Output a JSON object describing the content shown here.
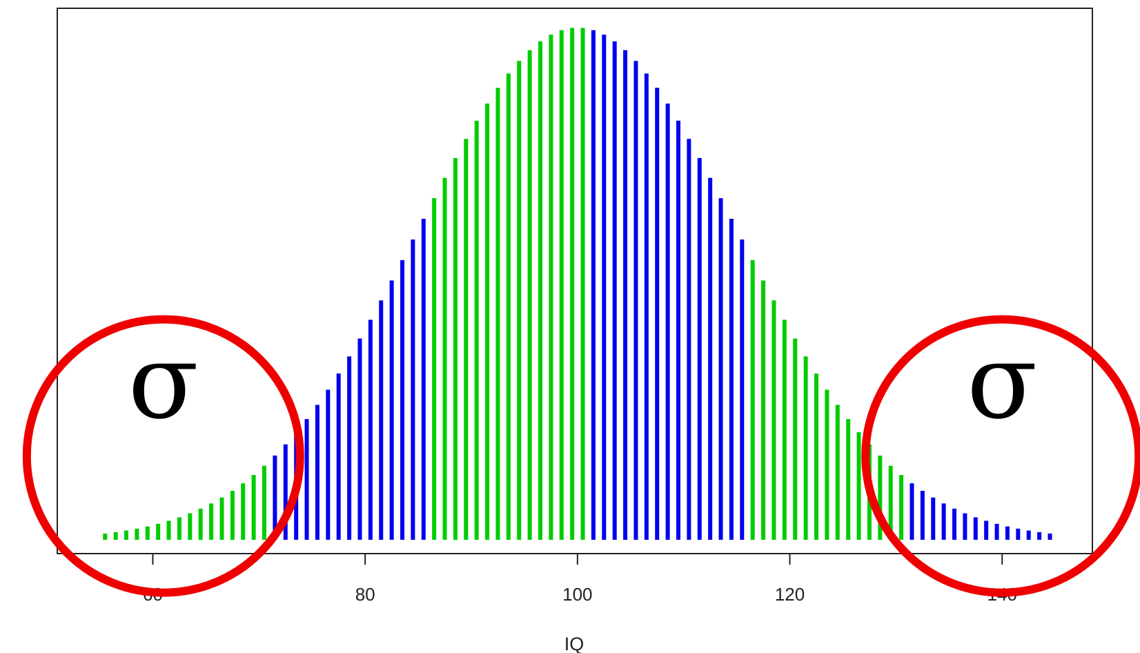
{
  "chart_data": {
    "type": "bar",
    "title": "",
    "xlabel": "IQ",
    "ylabel": "",
    "xlim": [
      51,
      148.5
    ],
    "ylim": [
      0,
      1.0
    ],
    "x_ticks": [
      60,
      80,
      100,
      120,
      140
    ],
    "x_tick_labels": [
      "60",
      "80",
      "100",
      "120",
      "140"
    ],
    "grid": false,
    "legend": "none",
    "distribution": {
      "mean": 100,
      "sd": 15
    },
    "x_start": 55.5,
    "x_end": 145.0,
    "x_step": 1.0,
    "band_edges": [
      70.5,
      85.5,
      100.5,
      115.5,
      130.5
    ],
    "band_colors": [
      "#00cc00",
      "#0000ee"
    ],
    "colors": {
      "green": "#00cc00",
      "blue": "#0000ee",
      "circle": "#ee0000",
      "axis": "#222222"
    },
    "annotations": [
      {
        "type": "circle",
        "label": "σ",
        "x": 61,
        "y": 0.08
      },
      {
        "type": "circle",
        "label": "σ",
        "x": 140,
        "y": 0.08
      }
    ]
  }
}
